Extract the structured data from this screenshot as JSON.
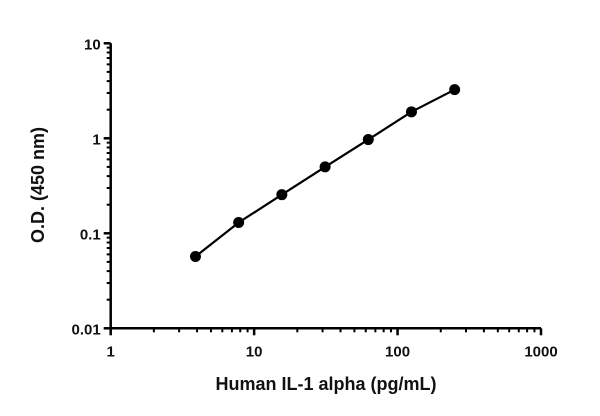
{
  "chart_data": {
    "type": "line",
    "title": "",
    "xlabel": "Human IL-1 alpha (pg/mL)",
    "ylabel": "O.D. (450 nm)",
    "xscale": "log",
    "yscale": "log",
    "xlim": [
      1,
      1000
    ],
    "ylim": [
      0.01,
      10
    ],
    "xticks": [
      "1",
      "10",
      "100",
      "1000"
    ],
    "yticks": [
      "0.01",
      "0.1",
      "1",
      "10"
    ],
    "grid": false,
    "legend": "none",
    "series": [
      {
        "x": [
          3.9,
          7.8,
          15.6,
          31.25,
          62.5,
          125,
          250
        ],
        "y": [
          0.057,
          0.13,
          0.255,
          0.5,
          0.97,
          1.9,
          3.25
        ],
        "color": "#000000",
        "marker": "circle"
      }
    ]
  }
}
